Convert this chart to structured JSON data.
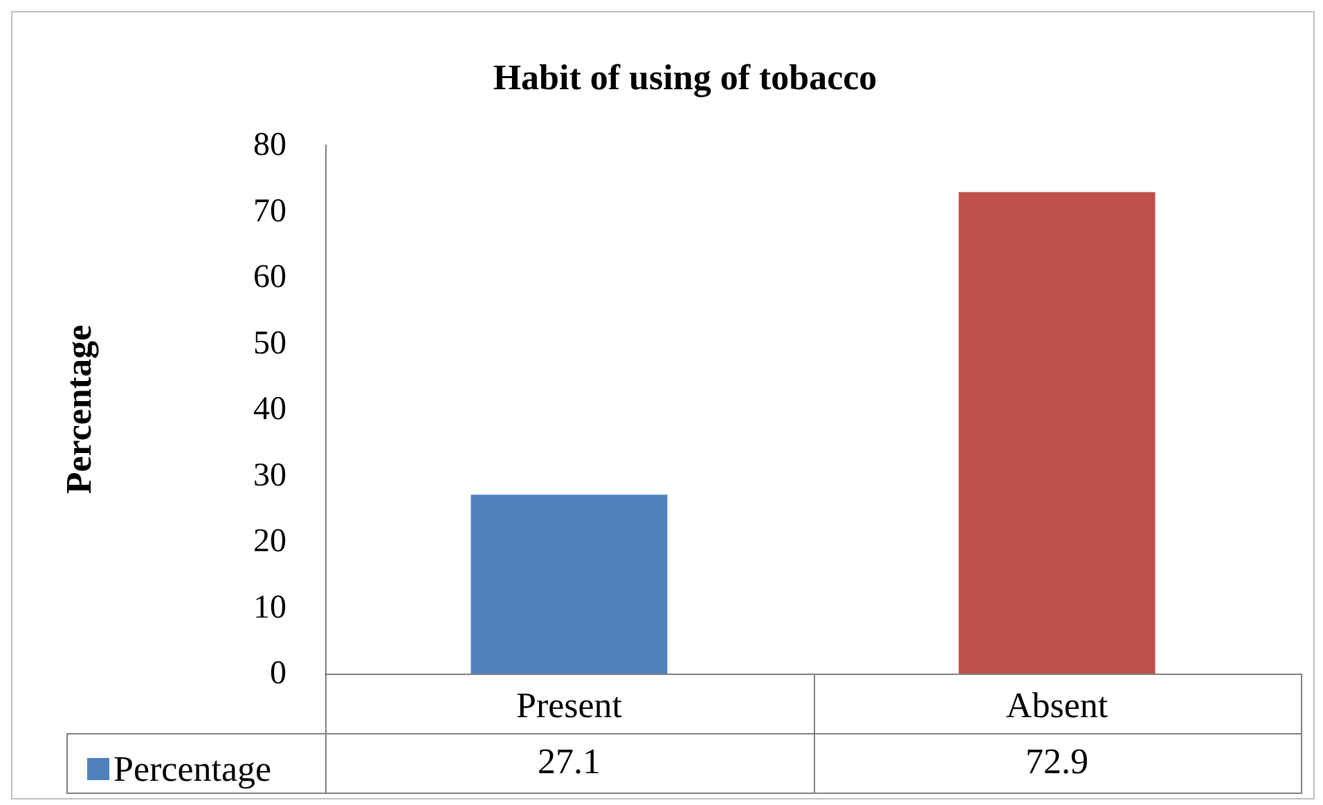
{
  "chart_data": {
    "type": "bar",
    "title": "Habit of using of tobacco",
    "ylabel": "Percentage",
    "categories": [
      "Present",
      "Absent"
    ],
    "series": [
      {
        "name": "Percentage",
        "colors": [
          "#4f81bd",
          "#c0504d"
        ],
        "values": [
          27.1,
          72.9
        ]
      }
    ],
    "ylim": [
      0,
      80
    ],
    "yticks": [
      0,
      10,
      20,
      30,
      40,
      50,
      60,
      70,
      80
    ],
    "grid": false,
    "legend": "bottom",
    "data_labels": true
  }
}
